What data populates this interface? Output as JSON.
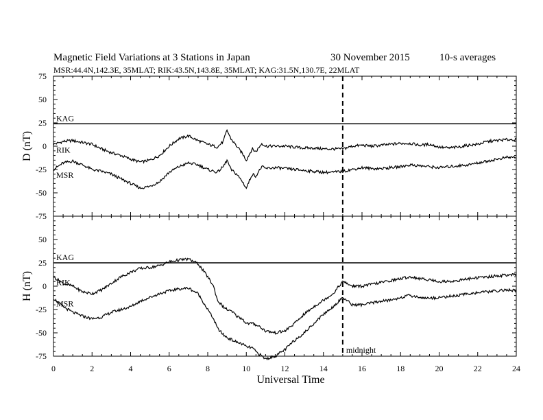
{
  "header": {
    "title": "Magnetic Field Variations at 3 Stations in Japan",
    "date": "30 November 2015",
    "averaging": "10-s averages",
    "stations": "MSR:44.4N,142.3E, 35MLAT;  RIK:43.5N,143.8E, 35MLAT;  KAG:31.5N,130.7E, 22MLAT"
  },
  "chart_data": [
    {
      "type": "line",
      "panel": "top",
      "ylabel": "D (nT)",
      "ylim": [
        -75,
        75
      ],
      "yticks": [
        -75,
        -50,
        -25,
        0,
        25,
        50,
        75
      ],
      "xlim": [
        0,
        24
      ],
      "grid": false,
      "series": [
        {
          "name": "KAG",
          "x": [
            0,
            24
          ],
          "y": [
            24,
            24
          ]
        },
        {
          "name": "RIK",
          "x": [
            0,
            0.5,
            1,
            1.5,
            2,
            2.5,
            3,
            3.5,
            4,
            4.5,
            5,
            5.5,
            6,
            6.5,
            7,
            7.5,
            8,
            8.5,
            8.8,
            9,
            9.2,
            9.5,
            9.8,
            10,
            10.3,
            10.5,
            10.8,
            11,
            11.5,
            12,
            12.5,
            13,
            13.5,
            14,
            14.5,
            15,
            15.5,
            16,
            16.5,
            17,
            17.5,
            18,
            18.5,
            19,
            19.5,
            20,
            20.5,
            21,
            21.5,
            22,
            22.5,
            23,
            23.5,
            24
          ],
          "y": [
            2,
            5,
            6,
            4,
            2,
            -3,
            -7,
            -10,
            -14,
            -17,
            -15,
            -10,
            0,
            8,
            11,
            6,
            2,
            -1,
            5,
            17,
            8,
            0,
            -8,
            -15,
            -3,
            -6,
            3,
            0,
            0,
            0,
            -1,
            -2,
            -2,
            -3,
            -3,
            -3,
            0,
            1,
            0,
            1,
            2,
            3,
            3,
            1,
            2,
            -1,
            -2,
            -1,
            1,
            2,
            5,
            6,
            7,
            7
          ]
        },
        {
          "name": "MSR",
          "x": [
            0,
            0.5,
            1,
            1.5,
            2,
            2.5,
            3,
            3.5,
            4,
            4.5,
            5,
            5.5,
            6,
            6.5,
            7,
            7.5,
            8,
            8.5,
            8.8,
            9,
            9.2,
            9.5,
            9.8,
            10,
            10.3,
            10.5,
            10.8,
            11,
            11.5,
            12,
            12.5,
            13,
            13.5,
            14,
            14.5,
            15,
            15.5,
            16,
            16.5,
            17,
            17.5,
            18,
            18.5,
            19,
            19.5,
            20,
            20.5,
            21,
            21.5,
            22,
            22.5,
            23,
            23.5,
            24
          ],
          "y": [
            -25,
            -18,
            -16,
            -20,
            -25,
            -27,
            -30,
            -35,
            -40,
            -45,
            -43,
            -38,
            -28,
            -22,
            -18,
            -20,
            -25,
            -28,
            -22,
            -15,
            -25,
            -30,
            -38,
            -45,
            -30,
            -32,
            -22,
            -24,
            -23,
            -24,
            -25,
            -26,
            -27,
            -28,
            -28,
            -27,
            -25,
            -23,
            -24,
            -24,
            -23,
            -22,
            -20,
            -21,
            -22,
            -23,
            -22,
            -21,
            -20,
            -18,
            -16,
            -14,
            -12,
            -12
          ]
        }
      ]
    },
    {
      "type": "line",
      "panel": "bottom",
      "ylabel": "H (nT)",
      "ylim": [
        -75,
        75
      ],
      "yticks": [
        -75,
        -50,
        -25,
        0,
        25,
        50,
        75
      ],
      "xlim": [
        0,
        24
      ],
      "xlabel": "Universal Time",
      "xticks": [
        0,
        2,
        4,
        6,
        8,
        10,
        12,
        14,
        16,
        18,
        20,
        22,
        24
      ],
      "grid": false,
      "series": [
        {
          "name": "KAG",
          "x": [
            0,
            24
          ],
          "y": [
            25,
            25
          ]
        },
        {
          "name": "RIK",
          "x": [
            0,
            0.5,
            1,
            1.5,
            2,
            2.5,
            3,
            3.5,
            4,
            4.5,
            5,
            5.5,
            6,
            6.5,
            7,
            7.5,
            8,
            8.3,
            8.5,
            8.8,
            9,
            9.3,
            9.5,
            9.8,
            10,
            10.3,
            10.6,
            11,
            11.5,
            12,
            12.5,
            13,
            13.5,
            14,
            14.5,
            15,
            15.5,
            16,
            16.5,
            17,
            17.5,
            18,
            18.5,
            19,
            19.5,
            20,
            20.5,
            21,
            21.5,
            22,
            22.5,
            23,
            23.5,
            24
          ],
          "y": [
            10,
            3,
            0,
            -6,
            -8,
            -4,
            3,
            10,
            15,
            19,
            20,
            22,
            26,
            28,
            29,
            24,
            10,
            0,
            -15,
            -22,
            -25,
            -28,
            -32,
            -35,
            -40,
            -40,
            -42,
            -48,
            -50,
            -48,
            -40,
            -30,
            -22,
            -15,
            -8,
            5,
            0,
            0,
            2,
            4,
            6,
            8,
            10,
            8,
            7,
            5,
            5,
            6,
            8,
            9,
            10,
            11,
            12,
            12
          ]
        },
        {
          "name": "MSR",
          "x": [
            0,
            0.5,
            1,
            1.5,
            2,
            2.5,
            3,
            3.5,
            4,
            4.5,
            5,
            5.5,
            6,
            6.5,
            7,
            7.5,
            8,
            8.3,
            8.5,
            8.8,
            9,
            9.3,
            9.5,
            9.8,
            10,
            10.3,
            10.6,
            11,
            11.5,
            12,
            12.5,
            13,
            13.5,
            14,
            14.5,
            15,
            15.5,
            16,
            16.5,
            17,
            17.5,
            18,
            18.5,
            19,
            19.5,
            20,
            20.5,
            21,
            21.5,
            22,
            22.5,
            23,
            23.5,
            24
          ],
          "y": [
            -13,
            -22,
            -28,
            -32,
            -35,
            -33,
            -28,
            -25,
            -22,
            -16,
            -12,
            -8,
            -5,
            -3,
            -2,
            -8,
            -25,
            -35,
            -45,
            -52,
            -55,
            -58,
            -60,
            -62,
            -65,
            -66,
            -72,
            -78,
            -75,
            -68,
            -58,
            -50,
            -40,
            -30,
            -22,
            -12,
            -20,
            -20,
            -18,
            -16,
            -15,
            -12,
            -10,
            -12,
            -13,
            -12,
            -11,
            -10,
            -8,
            -7,
            -6,
            -5,
            -4,
            -5
          ]
        }
      ]
    }
  ],
  "annotations": {
    "midnight_label": "midnight",
    "midnight_x": 15
  }
}
